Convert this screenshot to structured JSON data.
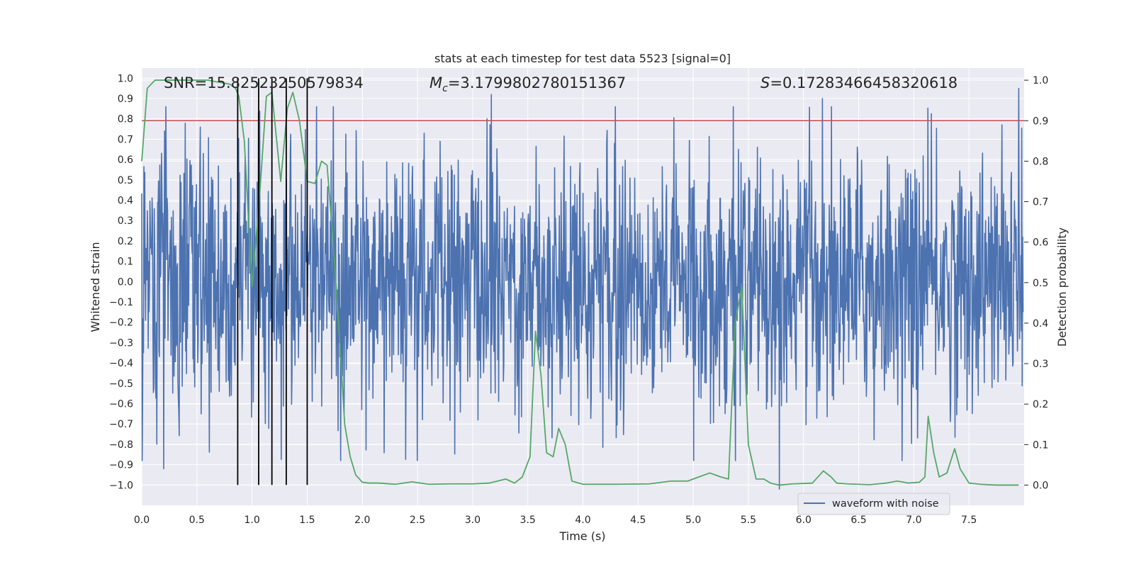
{
  "chart_data": {
    "type": "line",
    "title": "stats at each timestep for test data 5523 [signal=0]",
    "xlabel": "Time (s)",
    "ylabel": "Whitened strain",
    "ylabel_right": "Detection probability",
    "xlim": [
      0.0,
      8.0
    ],
    "ylim": [
      -1.1,
      1.05
    ],
    "ylim_right": [
      -0.05,
      1.03
    ],
    "xticks": [
      0.0,
      0.5,
      1.0,
      1.5,
      2.0,
      2.5,
      3.0,
      3.5,
      4.0,
      4.5,
      5.0,
      5.5,
      6.0,
      6.5,
      7.0,
      7.5
    ],
    "xtick_labels": [
      "0.0",
      "0.5",
      "1.0",
      "1.5",
      "2.0",
      "2.5",
      "3.0",
      "3.5",
      "4.0",
      "4.5",
      "5.0",
      "5.5",
      "6.0",
      "6.5",
      "7.0",
      "7.5"
    ],
    "yticks": [
      1.0,
      0.9,
      0.8,
      0.7,
      0.6,
      0.5,
      0.4,
      0.3,
      0.2,
      0.1,
      0.0,
      -0.1,
      -0.2,
      -0.3,
      -0.4,
      -0.5,
      -0.6,
      -0.7,
      -0.8,
      -0.9,
      -1.0
    ],
    "ytick_labels": [
      "1.0",
      "0.9",
      "0.8",
      "0.7",
      "0.6",
      "0.5",
      "0.4",
      "0.3",
      "0.2",
      "0.1",
      "0.0",
      "−0.1",
      "−0.2",
      "−0.3",
      "−0.4",
      "−0.5",
      "−0.6",
      "−0.7",
      "−0.8",
      "−0.9",
      "−1.0"
    ],
    "yticks_right": [
      1.0,
      0.9,
      0.8,
      0.7,
      0.6,
      0.5,
      0.4,
      0.3,
      0.2,
      0.1,
      0.0
    ],
    "ytick_labels_right": [
      "1.0",
      "0.9",
      "0.8",
      "0.7",
      "0.6",
      "0.5",
      "0.4",
      "0.3",
      "0.2",
      "0.1",
      "0.0"
    ],
    "annotations": {
      "snr": "SNR=15.82523250579834",
      "mc_symbol": "M",
      "mc_subscript": "c",
      "mc_value": "=3.1799802780151367",
      "s_symbol": "S",
      "s_value": "=0.17283466458320618"
    },
    "threshold": {
      "axis": "right",
      "value": 0.9,
      "color": "#c44e52"
    },
    "vertical_markers": {
      "x": [
        0.87,
        1.06,
        1.18,
        1.31,
        1.5
      ],
      "ymin": -1.0,
      "ymax": 1.0,
      "color": "#000000"
    },
    "legend": {
      "label": "waveform with noise",
      "position": "lower-right"
    },
    "waveform": {
      "name": "waveform with noise",
      "color": "#4c72b0",
      "samples": 2048,
      "typical_amplitude": 0.33,
      "max_peaks": [
        {
          "x": 3.17,
          "y": 0.92
        },
        {
          "x": 7.95,
          "y": 0.95
        },
        {
          "x": 6.17,
          "y": 0.9
        },
        {
          "x": 0.2,
          "y": -0.92
        },
        {
          "x": 5.78,
          "y": -1.02
        }
      ]
    },
    "series": [
      {
        "name": "Detection probability",
        "axis": "right",
        "color": "#55a868",
        "x": [
          0.0,
          0.05,
          0.12,
          0.2,
          0.35,
          0.5,
          0.6,
          0.7,
          0.8,
          0.85,
          0.88,
          0.93,
          1.0,
          1.07,
          1.13,
          1.18,
          1.22,
          1.26,
          1.32,
          1.37,
          1.43,
          1.5,
          1.57,
          1.63,
          1.68,
          1.73,
          1.78,
          1.84,
          1.89,
          1.94,
          2.0,
          2.06,
          2.15,
          2.3,
          2.45,
          2.6,
          2.8,
          3.0,
          3.15,
          3.3,
          3.38,
          3.45,
          3.52,
          3.57,
          3.62,
          3.67,
          3.73,
          3.78,
          3.84,
          3.9,
          4.0,
          4.3,
          4.6,
          4.8,
          4.95,
          5.05,
          5.15,
          5.25,
          5.32,
          5.38,
          5.44,
          5.5,
          5.57,
          5.64,
          5.7,
          5.78,
          5.9,
          6.08,
          6.18,
          6.25,
          6.3,
          6.4,
          6.6,
          6.75,
          6.85,
          6.95,
          7.05,
          7.1,
          7.13,
          7.18,
          7.23,
          7.3,
          7.37,
          7.42,
          7.5,
          7.6,
          7.75,
          7.95
        ],
        "y": [
          0.8,
          0.98,
          1.0,
          1.0,
          1.0,
          1.0,
          1.0,
          0.995,
          0.99,
          0.98,
          0.96,
          0.85,
          0.49,
          0.72,
          0.96,
          0.97,
          0.86,
          0.75,
          0.93,
          0.97,
          0.9,
          0.75,
          0.745,
          0.8,
          0.79,
          0.62,
          0.42,
          0.15,
          0.07,
          0.025,
          0.007,
          0.005,
          0.005,
          0.002,
          0.008,
          0.002,
          0.003,
          0.003,
          0.005,
          0.015,
          0.005,
          0.02,
          0.07,
          0.38,
          0.27,
          0.08,
          0.07,
          0.14,
          0.1,
          0.01,
          0.002,
          0.002,
          0.003,
          0.01,
          0.01,
          0.02,
          0.03,
          0.02,
          0.015,
          0.4,
          0.49,
          0.1,
          0.015,
          0.015,
          0.005,
          0.0,
          0.003,
          0.005,
          0.035,
          0.02,
          0.005,
          0.003,
          0.001,
          0.005,
          0.01,
          0.005,
          0.007,
          0.02,
          0.17,
          0.08,
          0.02,
          0.03,
          0.09,
          0.04,
          0.005,
          0.002,
          0.0,
          0.0
        ]
      }
    ]
  }
}
